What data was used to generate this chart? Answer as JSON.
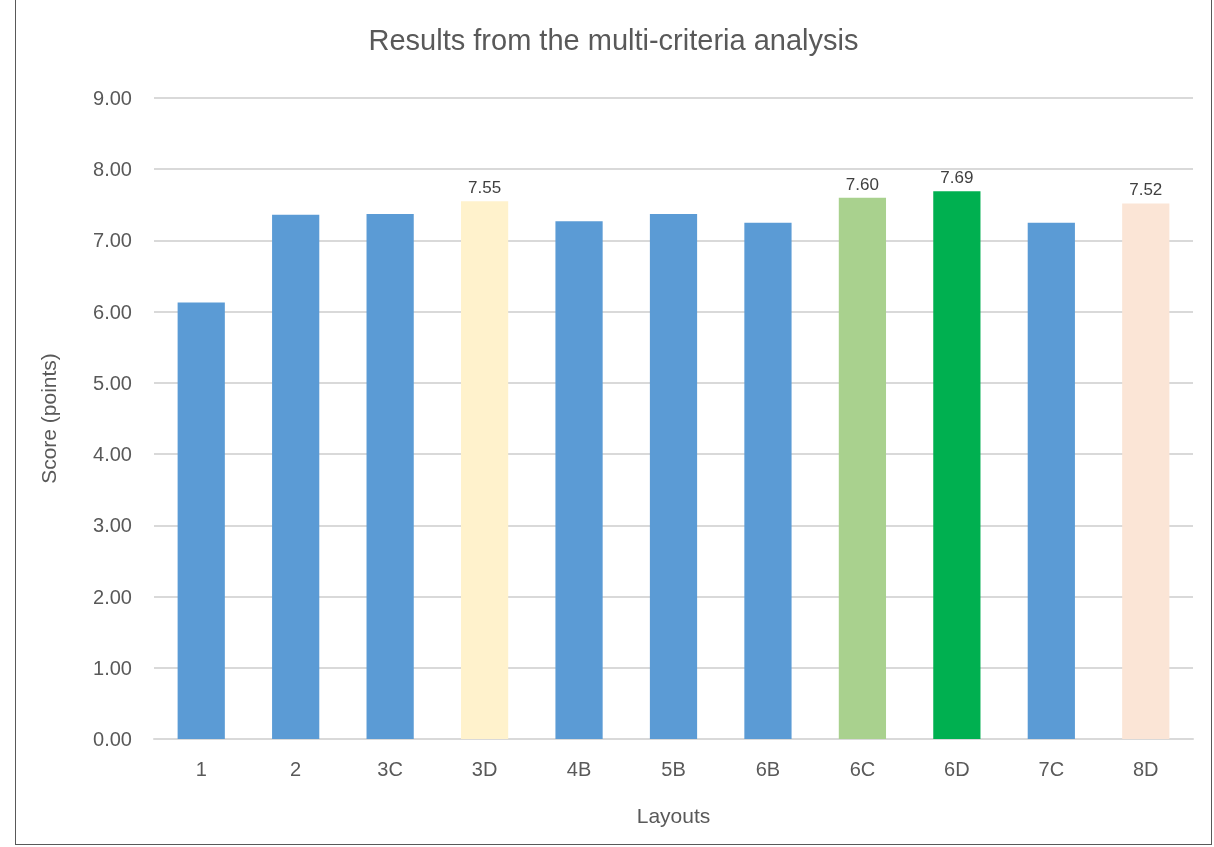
{
  "chart_data": {
    "type": "bar",
    "title": "Results from the multi-criteria analysis",
    "xlabel": "Layouts",
    "ylabel": "Score (points)",
    "categories": [
      "1",
      "2",
      "3C",
      "3D",
      "4B",
      "5B",
      "6B",
      "6C",
      "6D",
      "7C",
      "8D"
    ],
    "values": [
      6.13,
      7.36,
      7.37,
      7.55,
      7.27,
      7.37,
      7.25,
      7.6,
      7.69,
      7.25,
      7.52
    ],
    "colors": [
      "#5b9bd5",
      "#5b9bd5",
      "#5b9bd5",
      "#fff2cc",
      "#5b9bd5",
      "#5b9bd5",
      "#5b9bd5",
      "#a9d18e",
      "#00b050",
      "#5b9bd5",
      "#fbe5d6"
    ],
    "value_labels": [
      null,
      null,
      null,
      "7.55",
      null,
      null,
      null,
      "7.60",
      "7.69",
      null,
      "7.52"
    ],
    "ylim": [
      0,
      9
    ],
    "yticks": [
      {
        "value": 0,
        "label": "0.00"
      },
      {
        "value": 1,
        "label": "1.00"
      },
      {
        "value": 2,
        "label": "2.00"
      },
      {
        "value": 3,
        "label": "3.00"
      },
      {
        "value": 4,
        "label": "4.00"
      },
      {
        "value": 5,
        "label": "5.00"
      },
      {
        "value": 6,
        "label": "6.00"
      },
      {
        "value": 7,
        "label": "7.00"
      },
      {
        "value": 8,
        "label": "8.00"
      },
      {
        "value": 9,
        "label": "9.00"
      }
    ],
    "grid": "y"
  }
}
